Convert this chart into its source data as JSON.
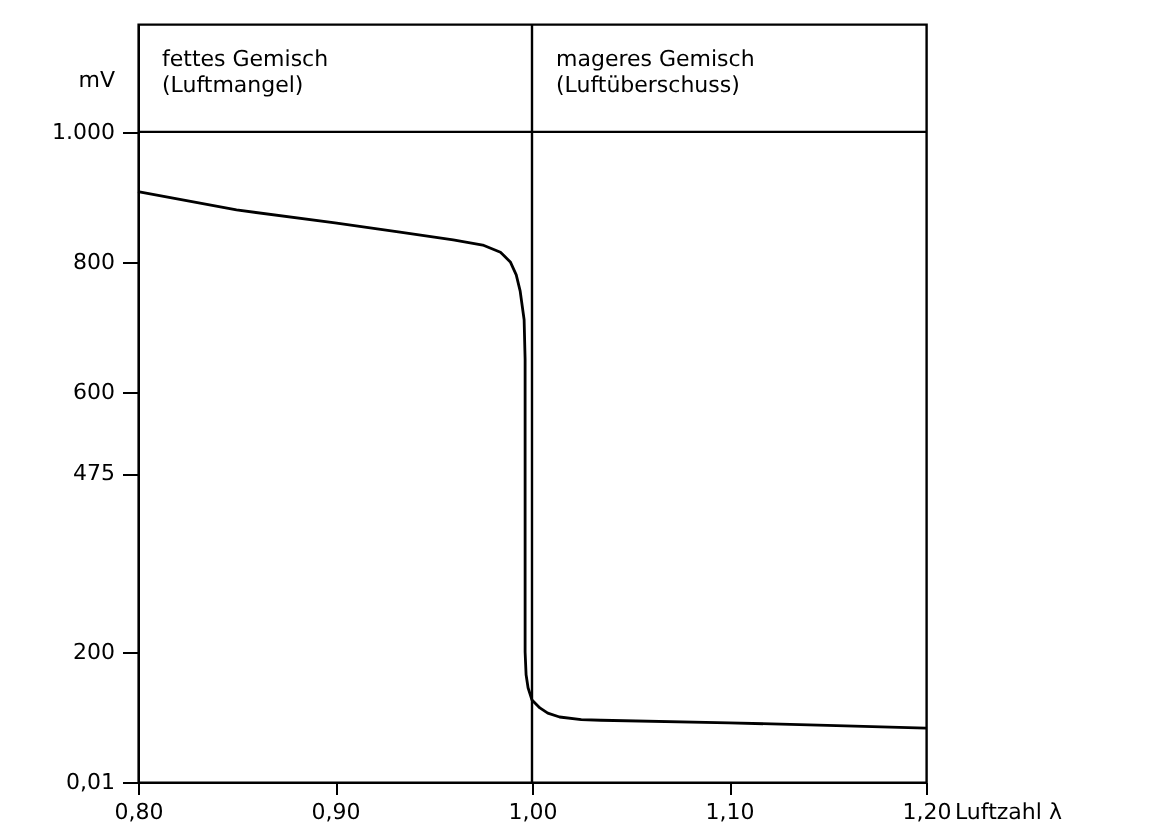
{
  "chart_data": {
    "type": "line",
    "xlabel": "Luftzahl λ",
    "ylabel": "mV",
    "annotations": [
      "fettes Gemisch\n(Luftmangel)",
      "mageres Gemisch\n(Luftüberschuss)"
    ],
    "series": [
      {
        "color": "#000000",
        "x": [
          0.8,
          0.85,
          0.9,
          0.933,
          0.96,
          0.975,
          0.984,
          0.989,
          0.992,
          0.994,
          0.996,
          0.9965,
          0.9965,
          0.997,
          0.998,
          1.0,
          1.004,
          1.008,
          1.014,
          1.025,
          1.035,
          1.1,
          1.15,
          1.2
        ],
        "values": [
          908,
          880,
          860,
          846,
          834,
          826,
          815,
          800,
          780,
          755,
          711,
          650,
          200,
          165,
          145,
          126,
          114,
          106,
          100,
          96,
          95,
          91,
          87,
          83
        ]
      }
    ],
    "xlim": [
      0.8,
      1.2
    ],
    "ylim": [
      0.01,
      1166
    ],
    "xticks": [
      {
        "value": 0.8,
        "label": "0,80"
      },
      {
        "value": 0.9,
        "label": "0,90"
      },
      {
        "value": 1.0,
        "label": "1,00"
      },
      {
        "value": 1.1,
        "label": "1,10"
      },
      {
        "value": 1.2,
        "label": "1,20"
      }
    ],
    "yticks": [
      {
        "value": 0.01,
        "label": "0,01"
      },
      200,
      475,
      600,
      800,
      {
        "value": 1000,
        "label": "1.000"
      }
    ],
    "ref_lines": [
      {
        "axis": "x",
        "value": 1.0,
        "color": "#000000"
      },
      {
        "axis": "y",
        "value": 1000,
        "color": "#000000"
      }
    ],
    "grid": false,
    "marker": "none",
    "line_style": "solid"
  }
}
